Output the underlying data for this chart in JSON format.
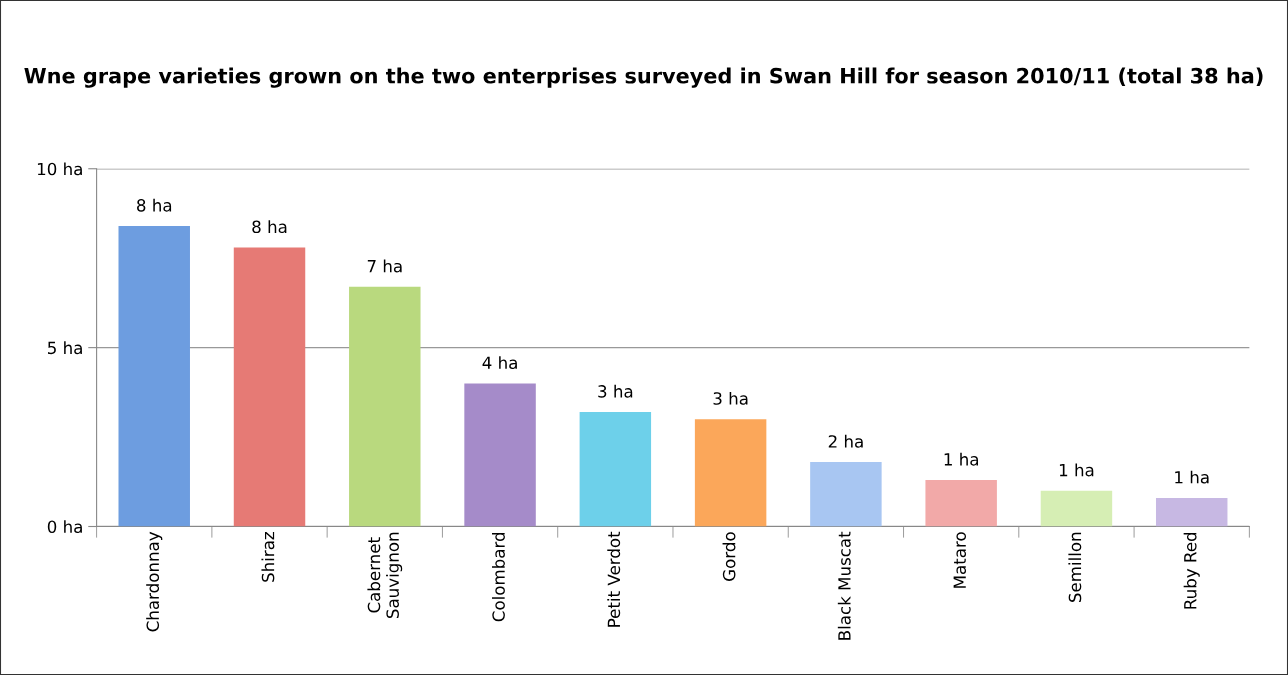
{
  "chart_data": {
    "type": "bar",
    "title": "Wne grape varieties grown on the two enterprises surveyed in Swan Hill for season 2010/11 (total 38 ha)",
    "categories": [
      "Chardonnay",
      "Shiraz",
      "Cabernet\nSauvignon",
      "Colombard",
      "Petit Verdot",
      "Gordo",
      "Black Muscat",
      "Mataro",
      "Semillon",
      "Ruby Red"
    ],
    "values": [
      8.4,
      7.8,
      6.7,
      4.0,
      3.2,
      3.0,
      1.8,
      1.3,
      1.0,
      0.8
    ],
    "colors": [
      "#6d9de0",
      "#e67a75",
      "#b9d97e",
      "#a58bc9",
      "#6dd0ea",
      "#fba75a",
      "#a8c6f2",
      "#f2a9a8",
      "#d6eeb4",
      "#c7b8e3"
    ],
    "value_labels": [
      "8 ha",
      "8 ha",
      "7 ha",
      "4 ha",
      "3 ha",
      "3 ha",
      "2 ha",
      "1 ha",
      "1 ha",
      "1 ha"
    ],
    "ylim": [
      0,
      10
    ],
    "yticks": [
      {
        "value": 0,
        "label": "0 ha"
      },
      {
        "value": 5,
        "label": "5 ha"
      },
      {
        "value": 10,
        "label": "10 ha"
      }
    ],
    "grid": "y"
  }
}
